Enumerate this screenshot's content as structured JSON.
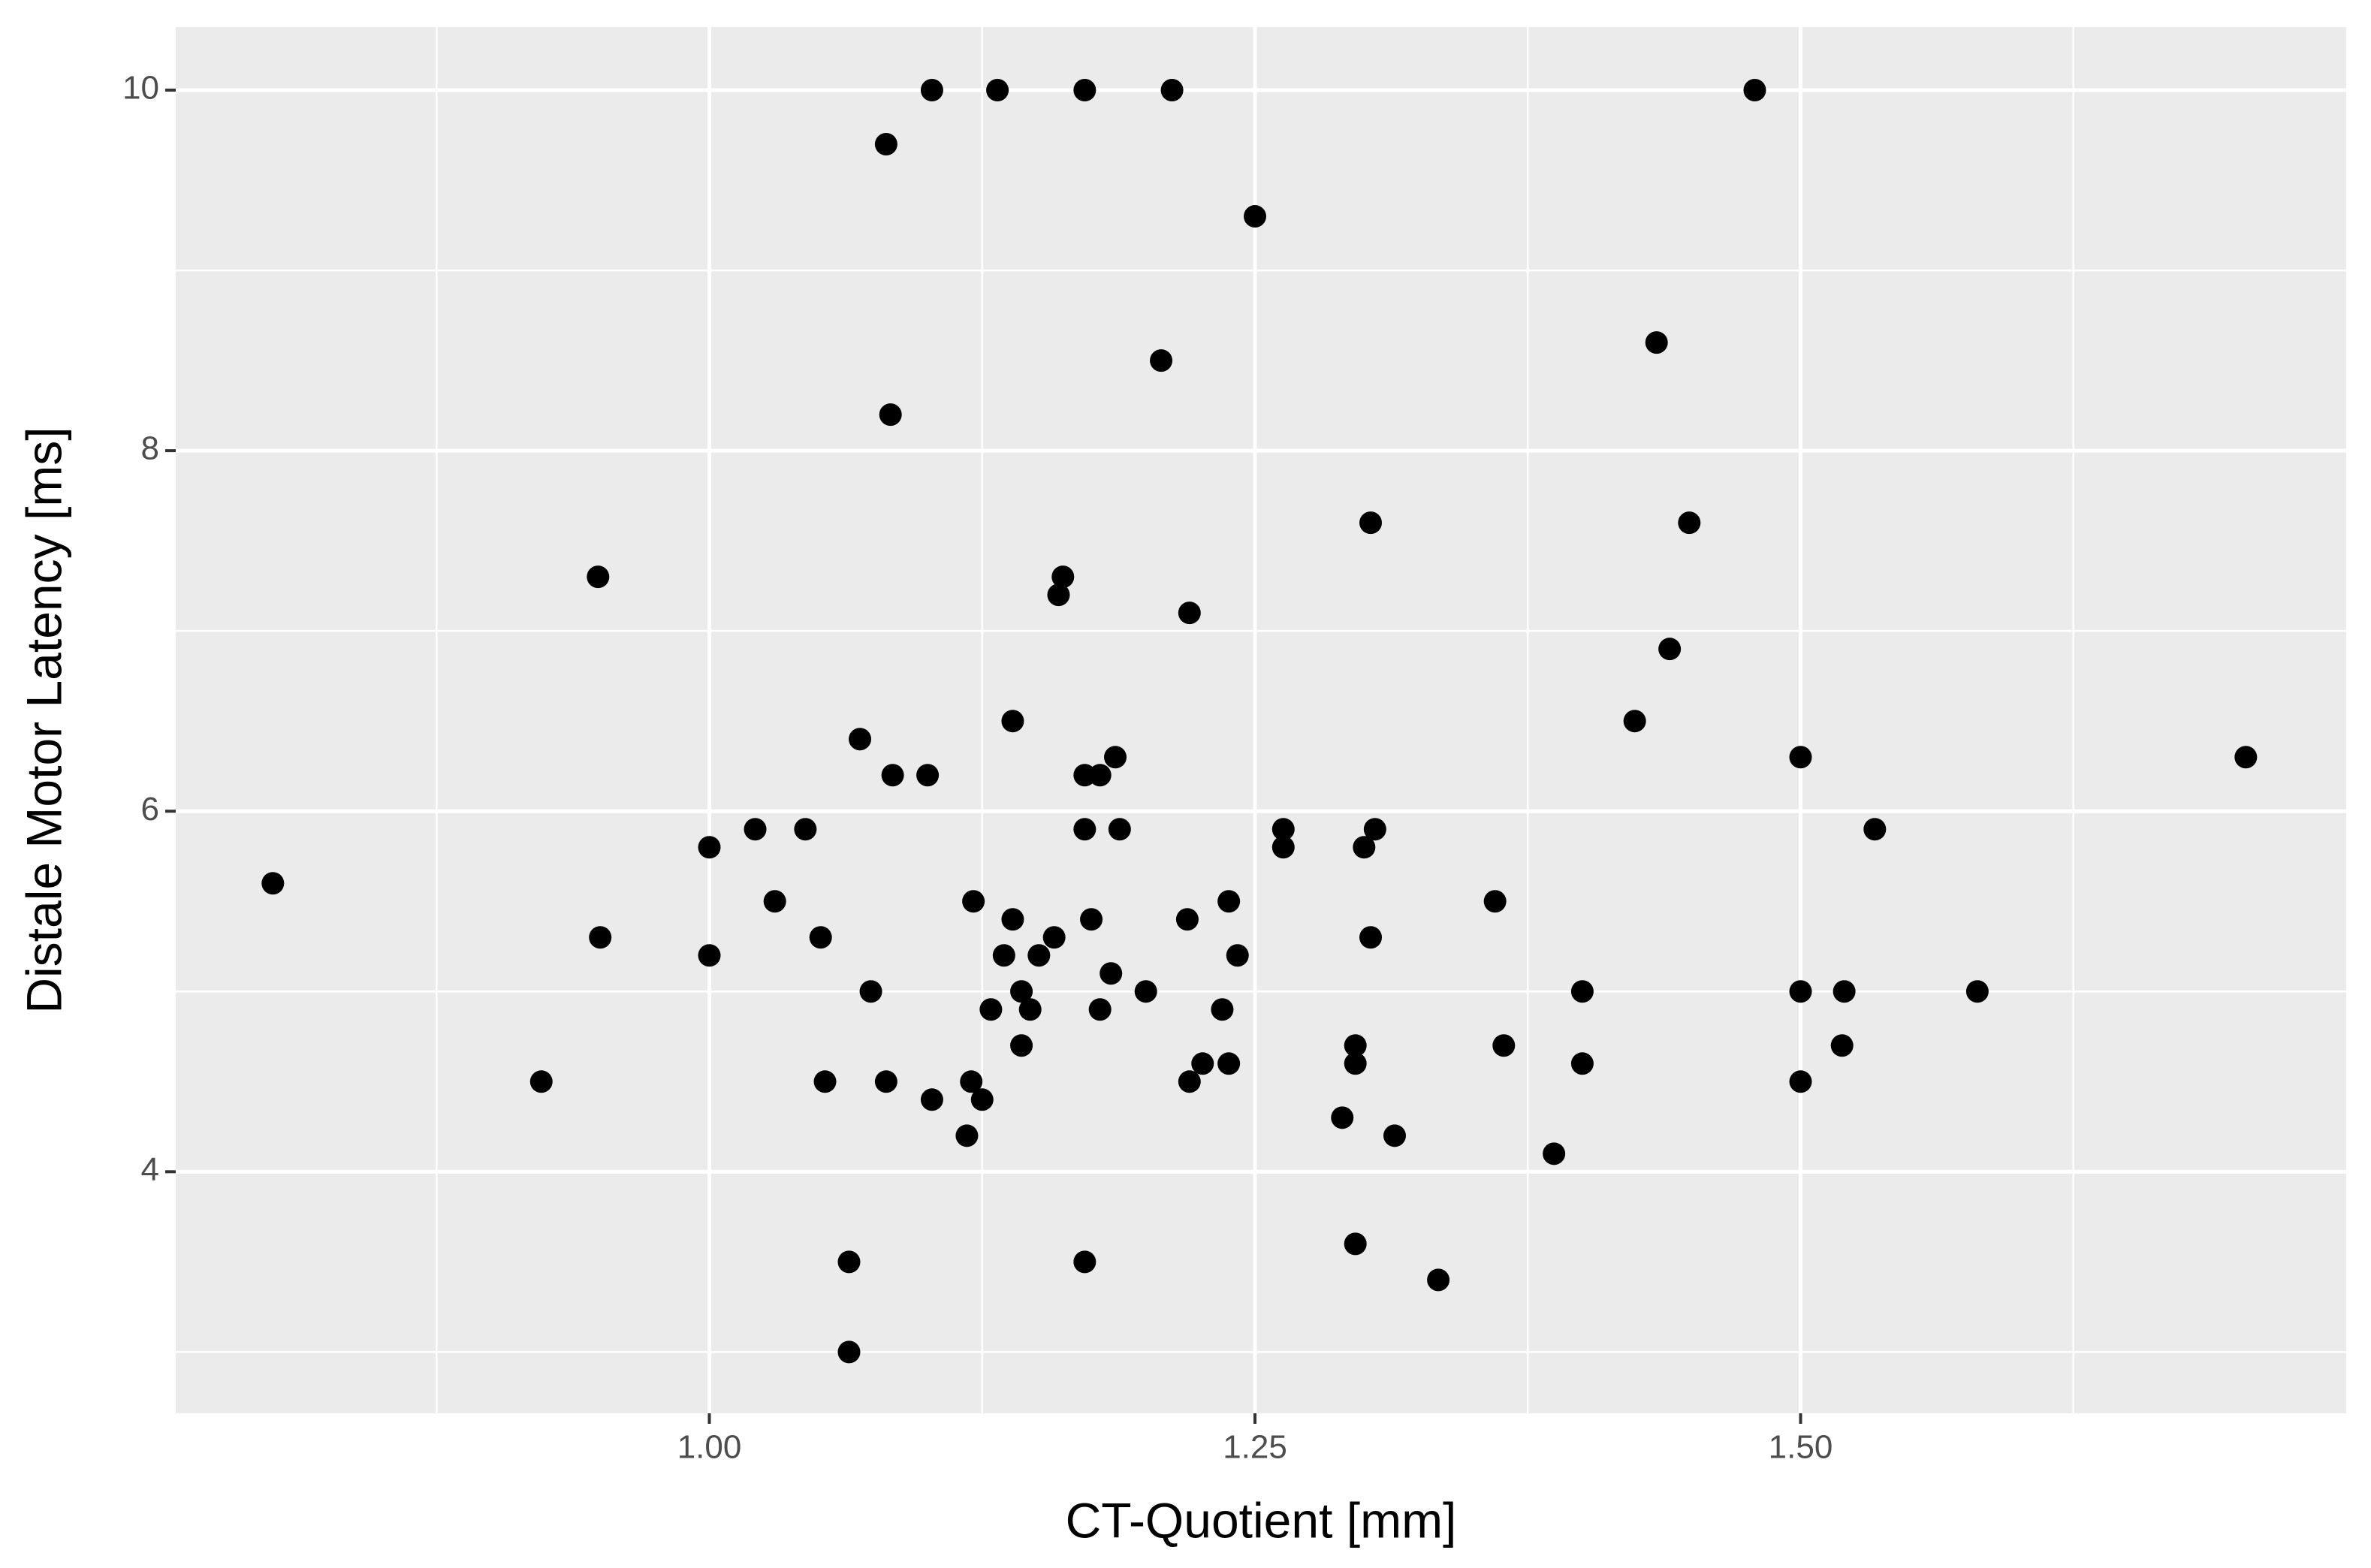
{
  "chart_data": {
    "type": "scatter",
    "x_label": "CT-Quotient [mm]",
    "y_label": "Distale Motor Latency [ms]",
    "color": "#000000",
    "grid": true,
    "xlim": [
      0.7555,
      1.75
    ],
    "ylim": [
      2.66,
      10.35
    ],
    "xticks": [
      {
        "value": 1,
        "label": "1.00"
      },
      {
        "value": 1.25,
        "label": "1.25"
      },
      {
        "value": 1.5,
        "label": "1.50"
      }
    ],
    "yticks": [
      4,
      6,
      8,
      10
    ],
    "x": [
      0.8,
      0.923,
      0.949,
      0.95,
      1.0,
      1.0,
      1.021,
      1.03,
      1.044,
      1.051,
      1.053,
      1.064,
      1.064,
      1.069,
      1.074,
      1.081,
      1.081,
      1.083,
      1.084,
      1.1,
      1.102,
      1.102,
      1.118,
      1.12,
      1.121,
      1.125,
      1.129,
      1.132,
      1.135,
      1.139,
      1.139,
      1.143,
      1.143,
      1.147,
      1.151,
      1.158,
      1.16,
      1.162,
      1.172,
      1.172,
      1.172,
      1.172,
      1.175,
      1.179,
      1.179,
      1.184,
      1.186,
      1.188,
      1.2,
      1.207,
      1.212,
      1.219,
      1.22,
      1.22,
      1.226,
      1.235,
      1.238,
      1.238,
      1.242,
      1.25,
      1.263,
      1.263,
      1.29,
      1.296,
      1.296,
      1.296,
      1.3,
      1.303,
      1.303,
      1.305,
      1.314,
      1.334,
      1.36,
      1.364,
      1.387,
      1.4,
      1.4,
      1.424,
      1.434,
      1.44,
      1.449,
      1.479,
      1.5,
      1.5,
      1.5,
      1.519,
      1.52,
      1.534,
      1.581,
      1.704
    ],
    "values": [
      5.6,
      4.5,
      7.3,
      5.3,
      5.8,
      5.2,
      5.9,
      5.5,
      5.9,
      5.3,
      4.5,
      3.5,
      3.0,
      6.4,
      5.0,
      9.7,
      4.5,
      8.2,
      6.2,
      6.2,
      10,
      4.4,
      4.2,
      4.5,
      5.5,
      4.4,
      4.9,
      10,
      5.2,
      6.5,
      5.4,
      5.0,
      4.7,
      4.9,
      5.2,
      5.3,
      7.2,
      7.3,
      10,
      6.2,
      5.9,
      3.5,
      5.4,
      4.9,
      6.2,
      5.1,
      6.3,
      5.9,
      5.0,
      8.5,
      10,
      5.4,
      7.1,
      4.5,
      4.6,
      4.9,
      5.5,
      4.6,
      5.2,
      9.3,
      5.9,
      5.8,
      4.3,
      4.7,
      4.6,
      3.6,
      5.8,
      7.6,
      5.3,
      5.9,
      4.2,
      3.4,
      5.5,
      4.7,
      4.1,
      5.0,
      4.6,
      6.5,
      8.6,
      6.9,
      7.6,
      10,
      6.3,
      5.0,
      4.5,
      4.7,
      5.0,
      5.9,
      5.0,
      6.3
    ]
  }
}
